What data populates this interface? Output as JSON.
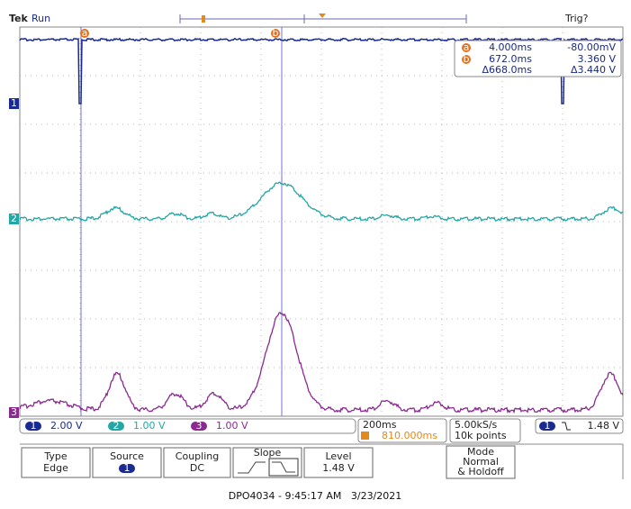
{
  "header": {
    "brand": "Tek",
    "status": "Run",
    "trigger_status": "Trig?"
  },
  "markers": {
    "channel_1": "1",
    "channel_2": "2",
    "channel_3": "3",
    "cursor_a": "a",
    "cursor_b": "b"
  },
  "cursor_readout": {
    "rows": [
      [
        "a",
        "4.000ms",
        "-80.00mV"
      ],
      [
        "b",
        "672.0ms",
        "3.360 V"
      ]
    ],
    "delta_time": "Δ668.0ms",
    "delta_value": "Δ3.440 V"
  },
  "status_bar": {
    "channels": [
      {
        "id": "1",
        "scale": "2.00 V"
      },
      {
        "id": "2",
        "scale": "1.00 V"
      },
      {
        "id": "3",
        "scale": "1.00 V"
      }
    ],
    "timebase": "200ms",
    "trigger_position": "810.000ms",
    "sample_rate": "5.00kS/s",
    "record_length": "10k points",
    "trigger_source": "1",
    "trigger_level": "1.48 V"
  },
  "menu": [
    {
      "label": "Type",
      "value": "Edge"
    },
    {
      "label": "Source",
      "value": "1"
    },
    {
      "label": "Coupling",
      "value": "DC"
    },
    {
      "label": "Slope"
    },
    {
      "label": "Level",
      "value": "1.48 V"
    },
    {
      "label": "Mode",
      "value": "Normal",
      "extra": "& Holdoff"
    }
  ],
  "caption": "DPO4034 - 9:45:17 AM   3/23/2021"
}
